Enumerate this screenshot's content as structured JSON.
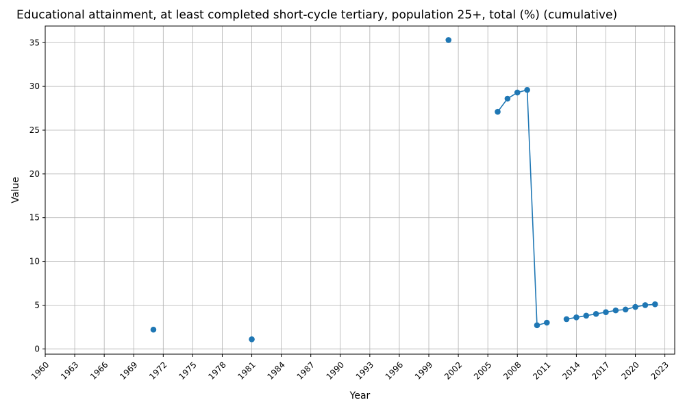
{
  "chart_data": {
    "type": "line",
    "title": "Educational attainment, at least completed short-cycle tertiary, population 25+, total (%) (cumulative)",
    "xlabel": "Year",
    "ylabel": "Value",
    "xlim": [
      1960,
      2024
    ],
    "ylim": [
      -0.6,
      36.9
    ],
    "x_ticks": [
      "1960",
      "1963",
      "1966",
      "1969",
      "1972",
      "1975",
      "1978",
      "1981",
      "1984",
      "1987",
      "1990",
      "1993",
      "1996",
      "1999",
      "2002",
      "2005",
      "2008",
      "2011",
      "2014",
      "2017",
      "2020",
      "2023"
    ],
    "y_ticks": [
      "0",
      "5",
      "10",
      "15",
      "20",
      "25",
      "30",
      "35"
    ],
    "grid": true,
    "series": [
      {
        "color": "#1f77b4",
        "points": [
          {
            "x": 1971,
            "y": 2.2
          },
          {
            "x": 1981,
            "y": 1.1
          },
          {
            "x": 2001,
            "y": 35.3
          },
          {
            "x": 2006,
            "y": 27.1
          },
          {
            "x": 2007,
            "y": 28.6
          },
          {
            "x": 2008,
            "y": 29.3
          },
          {
            "x": 2009,
            "y": 29.6
          },
          {
            "x": 2010,
            "y": 2.7
          },
          {
            "x": 2011,
            "y": 3.0
          },
          {
            "x": 2013,
            "y": 3.4
          },
          {
            "x": 2014,
            "y": 3.6
          },
          {
            "x": 2015,
            "y": 3.8
          },
          {
            "x": 2016,
            "y": 4.0
          },
          {
            "x": 2017,
            "y": 4.2
          },
          {
            "x": 2018,
            "y": 4.4
          },
          {
            "x": 2019,
            "y": 4.5
          },
          {
            "x": 2020,
            "y": 4.8
          },
          {
            "x": 2021,
            "y": 5.0
          },
          {
            "x": 2022,
            "y": 5.1
          }
        ]
      }
    ]
  }
}
